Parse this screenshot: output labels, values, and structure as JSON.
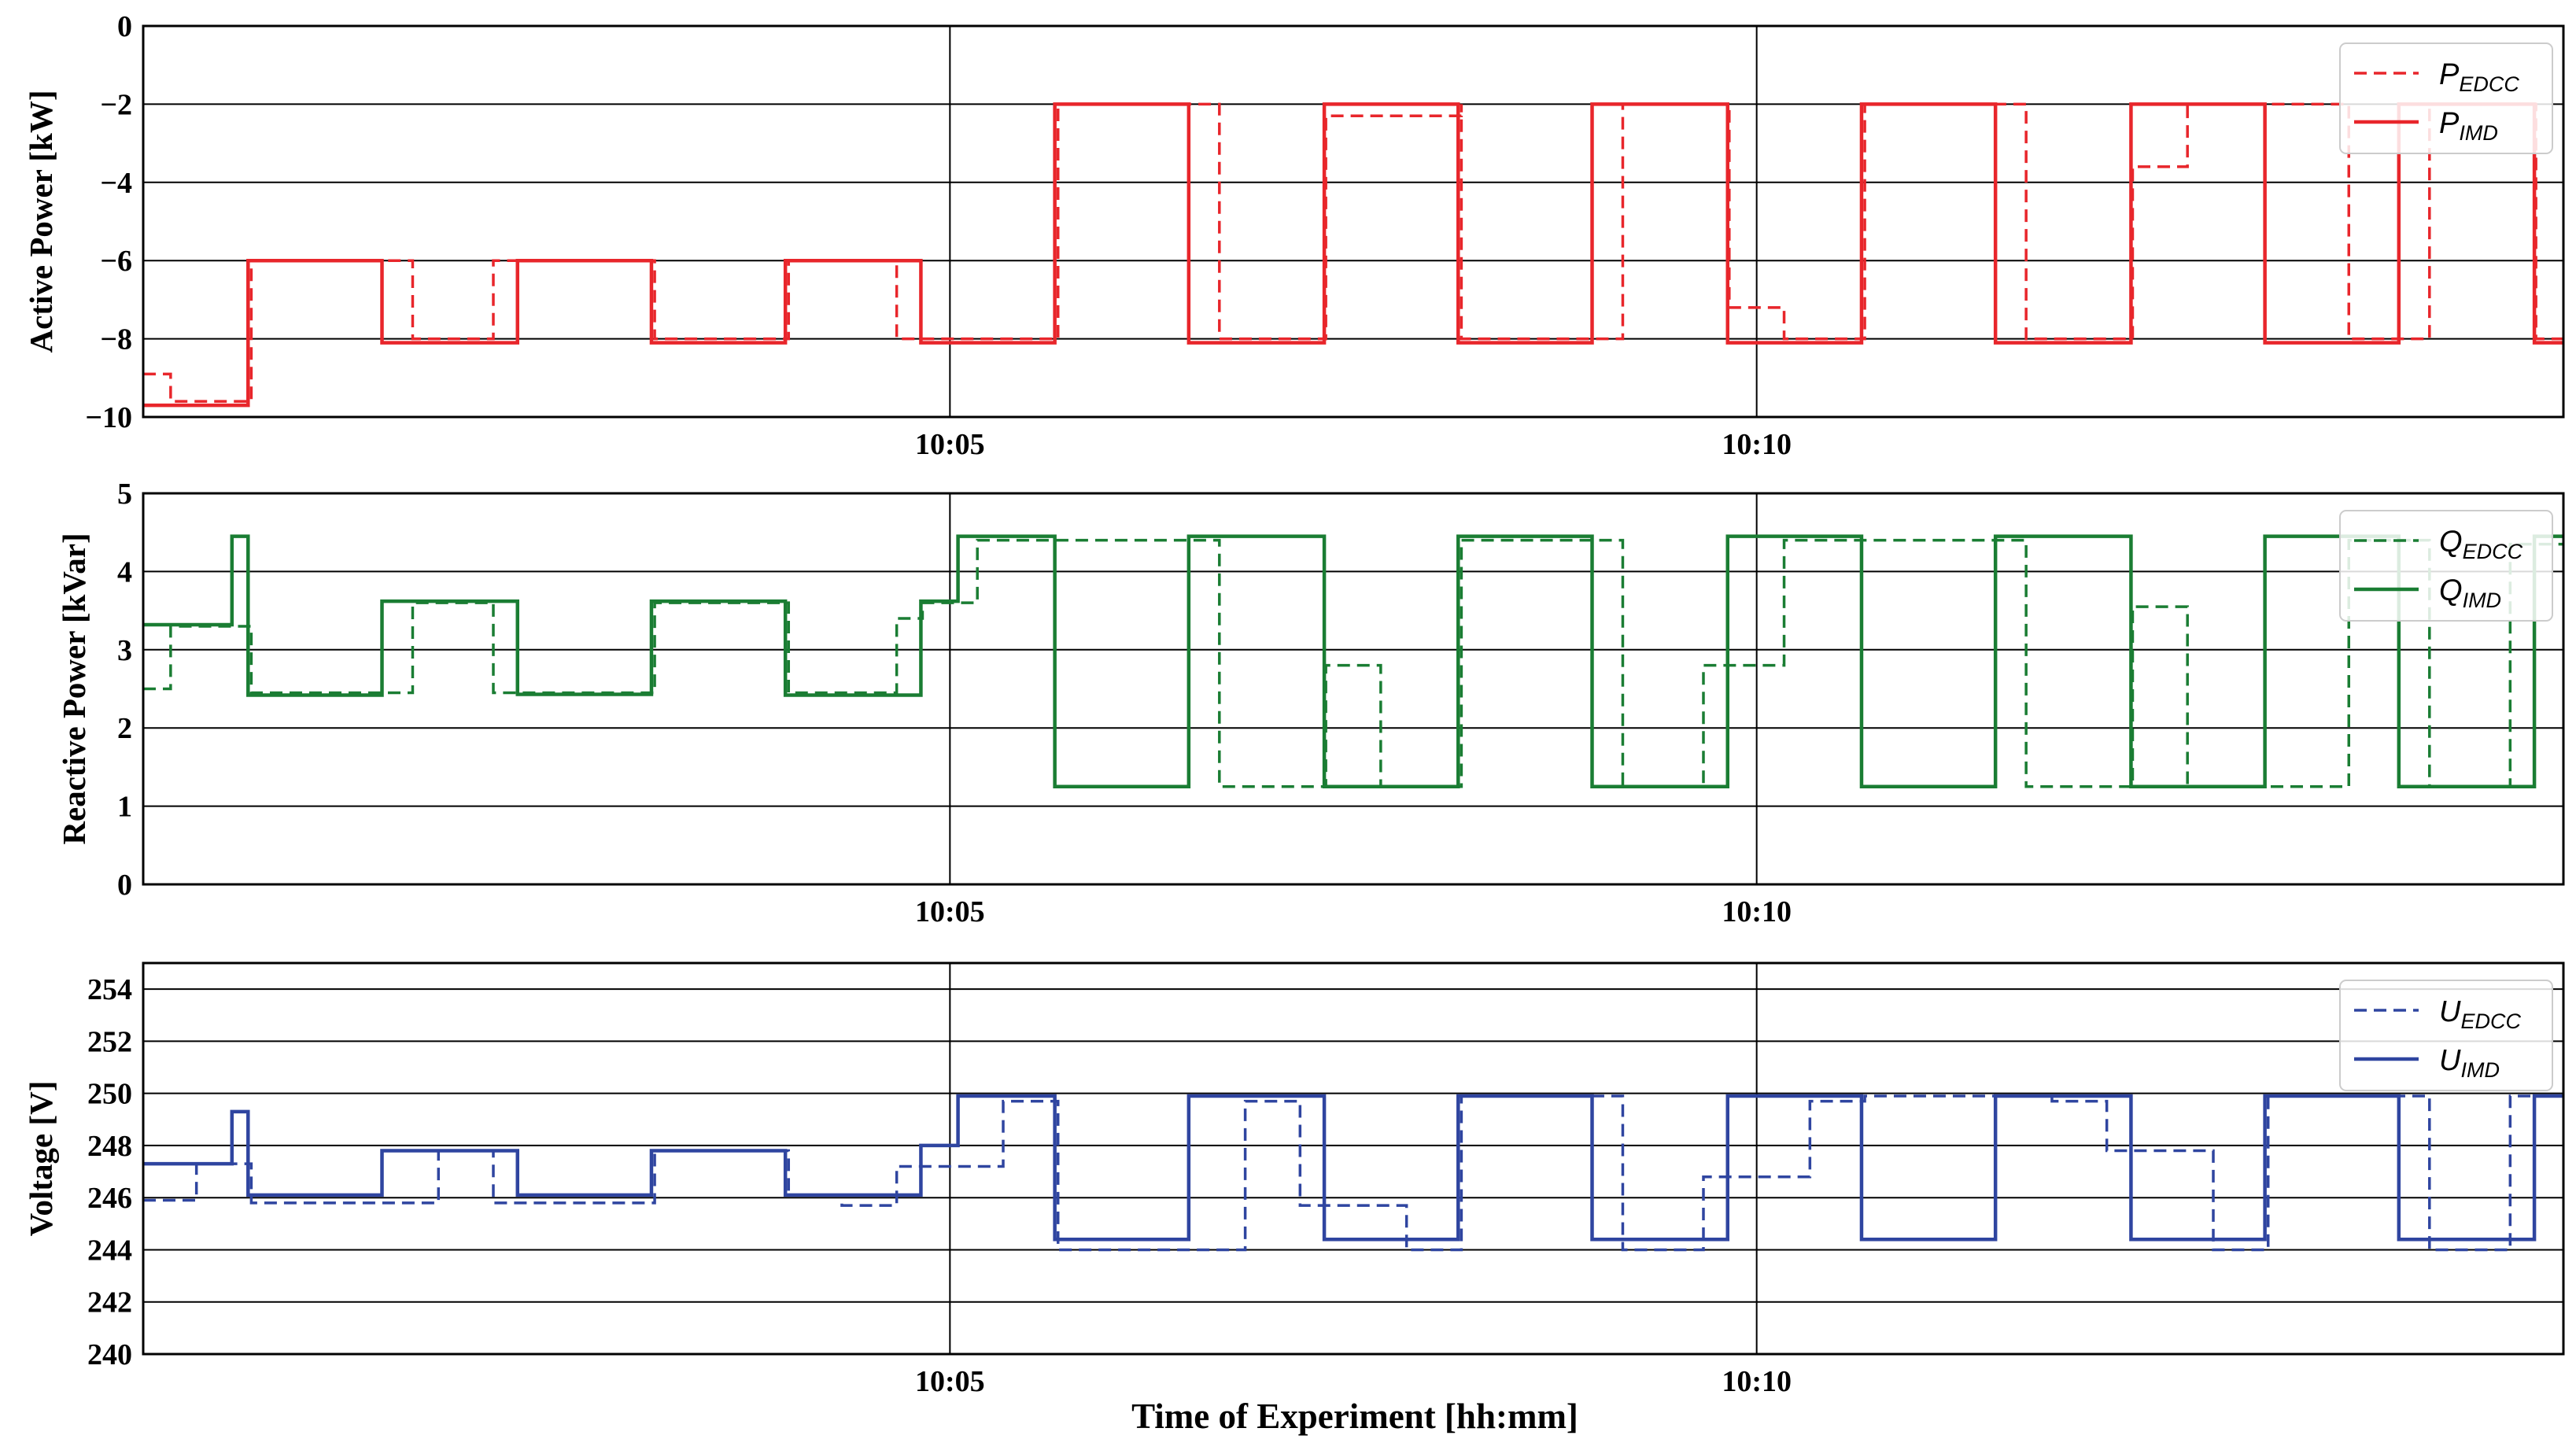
{
  "figure": {
    "xlabel": "Time of Experiment [hh:mm]"
  },
  "chart_data": [
    {
      "type": "line",
      "ylabel": "Active Power [kW]",
      "xlim": [
        0,
        15
      ],
      "ylim": [
        -10,
        0
      ],
      "yticks": [
        0,
        -2,
        -4,
        -6,
        -8,
        -10
      ],
      "ytick_labels": [
        "0",
        "−2",
        "−4",
        "−6",
        "−8",
        "−10"
      ],
      "xticks": [
        5,
        10
      ],
      "xtick_labels": [
        "10:05",
        "10:10"
      ],
      "grid": true,
      "legend_position": "top-right",
      "color": "#e8262b",
      "series": [
        {
          "name": "P_EDCC",
          "label_main": "P",
          "label_sub": "EDCC",
          "style": "dashed",
          "steps": [
            [
              0,
              -8.9
            ],
            [
              0.17,
              -9.6
            ],
            [
              0.67,
              -6.0
            ],
            [
              1.67,
              -8.0
            ],
            [
              2.17,
              -6.0
            ],
            [
              3.17,
              -8.0
            ],
            [
              4.0,
              -6.0
            ],
            [
              4.67,
              -8.0
            ],
            [
              5.67,
              -2.0
            ],
            [
              6.67,
              -8.0
            ],
            [
              7.33,
              -2.3
            ],
            [
              8.17,
              -2.0
            ],
            [
              8.17,
              -8.0
            ],
            [
              9.17,
              -2.0
            ],
            [
              9.83,
              -7.2
            ],
            [
              10.17,
              -8.0
            ],
            [
              10.67,
              -2.0
            ],
            [
              11.67,
              -8.0
            ],
            [
              12.33,
              -3.6
            ],
            [
              12.67,
              -2.0
            ],
            [
              13.67,
              -8.0
            ],
            [
              14.17,
              -2.0
            ],
            [
              14.83,
              -8.0
            ]
          ]
        },
        {
          "name": "P_IMD",
          "label_main": "P",
          "label_sub": "IMD",
          "style": "solid",
          "steps": [
            [
              0,
              -9.7
            ],
            [
              0.65,
              -6.0
            ],
            [
              1.48,
              -8.1
            ],
            [
              2.32,
              -6.0
            ],
            [
              3.15,
              -8.1
            ],
            [
              3.98,
              -6.0
            ],
            [
              4.82,
              -8.1
            ],
            [
              5.65,
              -2.0
            ],
            [
              6.48,
              -8.1
            ],
            [
              7.32,
              -2.0
            ],
            [
              8.15,
              -8.1
            ],
            [
              8.98,
              -2.0
            ],
            [
              9.82,
              -8.1
            ],
            [
              10.65,
              -2.0
            ],
            [
              11.48,
              -8.1
            ],
            [
              12.32,
              -2.0
            ],
            [
              13.15,
              -8.1
            ],
            [
              13.98,
              -2.0
            ],
            [
              14.82,
              -8.1
            ]
          ]
        }
      ]
    },
    {
      "type": "line",
      "ylabel": "Reactive Power [kVar]",
      "xlim": [
        0,
        15
      ],
      "ylim": [
        0,
        5
      ],
      "yticks": [
        0,
        1,
        2,
        3,
        4,
        5
      ],
      "ytick_labels": [
        "0",
        "1",
        "2",
        "3",
        "4",
        "5"
      ],
      "xticks": [
        5,
        10
      ],
      "xtick_labels": [
        "10:05",
        "10:10"
      ],
      "grid": true,
      "legend_position": "top-right",
      "color": "#1a7d33",
      "series": [
        {
          "name": "Q_EDCC",
          "label_main": "Q",
          "label_sub": "EDCC",
          "style": "dashed",
          "steps": [
            [
              0,
              2.5
            ],
            [
              0.17,
              3.3
            ],
            [
              0.67,
              2.45
            ],
            [
              1.67,
              3.6
            ],
            [
              2.17,
              2.45
            ],
            [
              3.17,
              3.6
            ],
            [
              4.0,
              2.45
            ],
            [
              4.67,
              3.4
            ],
            [
              4.83,
              3.6
            ],
            [
              5.17,
              4.4
            ],
            [
              6.67,
              1.25
            ],
            [
              7.33,
              2.8
            ],
            [
              7.67,
              1.25
            ],
            [
              8.17,
              4.4
            ],
            [
              9.17,
              1.25
            ],
            [
              9.67,
              2.8
            ],
            [
              10.17,
              4.4
            ],
            [
              10.67,
              4.4
            ],
            [
              11.67,
              1.25
            ],
            [
              12.33,
              3.55
            ],
            [
              12.67,
              1.25
            ],
            [
              13.67,
              4.4
            ],
            [
              14.17,
              1.25
            ],
            [
              14.67,
              4.35
            ]
          ]
        },
        {
          "name": "Q_IMD",
          "label_main": "Q",
          "label_sub": "IMD",
          "style": "solid",
          "steps": [
            [
              0,
              3.32
            ],
            [
              0.55,
              4.45
            ],
            [
              0.65,
              2.42
            ],
            [
              1.48,
              3.62
            ],
            [
              2.32,
              2.43
            ],
            [
              3.15,
              3.62
            ],
            [
              3.98,
              2.42
            ],
            [
              4.82,
              3.62
            ],
            [
              5.05,
              4.45
            ],
            [
              5.65,
              1.25
            ],
            [
              6.48,
              4.45
            ],
            [
              7.32,
              1.25
            ],
            [
              8.15,
              4.45
            ],
            [
              8.98,
              1.25
            ],
            [
              9.82,
              4.45
            ],
            [
              10.65,
              1.25
            ],
            [
              11.48,
              4.45
            ],
            [
              12.32,
              1.25
            ],
            [
              13.15,
              4.45
            ],
            [
              13.98,
              1.25
            ],
            [
              14.82,
              4.45
            ]
          ]
        }
      ]
    },
    {
      "type": "line",
      "ylabel": "Voltage [V]",
      "xlim": [
        0,
        15
      ],
      "ylim": [
        240,
        255
      ],
      "yticks": [
        240,
        242,
        244,
        246,
        248,
        250,
        252,
        254
      ],
      "ytick_labels": [
        "240",
        "242",
        "244",
        "246",
        "248",
        "250",
        "252",
        "254"
      ],
      "xticks": [
        5,
        10
      ],
      "xtick_labels": [
        "10:05",
        "10:10"
      ],
      "grid": true,
      "legend_position": "top-right",
      "color": "#2f45a0",
      "series": [
        {
          "name": "U_EDCC",
          "label_main": "U",
          "label_sub": "EDCC",
          "style": "dashed",
          "steps": [
            [
              0,
              245.9
            ],
            [
              0.33,
              247.3
            ],
            [
              0.67,
              245.8
            ],
            [
              1.83,
              247.8
            ],
            [
              2.17,
              245.8
            ],
            [
              3.17,
              247.8
            ],
            [
              4.0,
              246.1
            ],
            [
              4.33,
              245.7
            ],
            [
              4.67,
              247.2
            ],
            [
              5.33,
              249.7
            ],
            [
              5.67,
              244.0
            ],
            [
              6.83,
              249.7
            ],
            [
              7.17,
              245.7
            ],
            [
              7.83,
              244.0
            ],
            [
              8.17,
              249.9
            ],
            [
              9.17,
              244.0
            ],
            [
              9.67,
              246.8
            ],
            [
              10.33,
              249.7
            ],
            [
              10.67,
              249.9
            ],
            [
              11.83,
              249.7
            ],
            [
              12.17,
              247.8
            ],
            [
              12.83,
              244.0
            ],
            [
              13.17,
              249.9
            ],
            [
              14.17,
              244.0
            ],
            [
              14.67,
              249.9
            ]
          ]
        },
        {
          "name": "U_IMD",
          "label_main": "U",
          "label_sub": "IMD",
          "style": "solid",
          "steps": [
            [
              0,
              247.3
            ],
            [
              0.55,
              249.3
            ],
            [
              0.65,
              246.1
            ],
            [
              1.48,
              247.8
            ],
            [
              2.32,
              246.1
            ],
            [
              3.15,
              247.8
            ],
            [
              3.98,
              246.1
            ],
            [
              4.82,
              248.0
            ],
            [
              5.05,
              249.9
            ],
            [
              5.65,
              244.4
            ],
            [
              6.48,
              249.9
            ],
            [
              7.32,
              244.4
            ],
            [
              8.15,
              249.9
            ],
            [
              8.98,
              244.4
            ],
            [
              9.82,
              249.9
            ],
            [
              10.65,
              244.4
            ],
            [
              11.48,
              249.9
            ],
            [
              12.32,
              244.4
            ],
            [
              13.15,
              249.9
            ],
            [
              13.98,
              244.4
            ],
            [
              14.82,
              249.9
            ]
          ]
        }
      ]
    }
  ]
}
